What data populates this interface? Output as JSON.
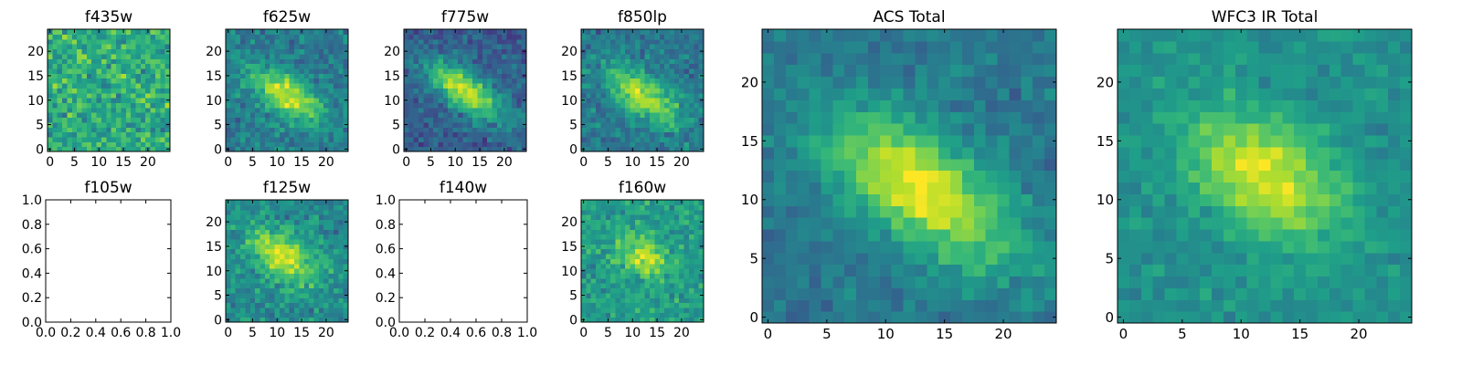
{
  "figure": {
    "colormap": "viridis"
  },
  "chart_data": [
    {
      "type": "heatmap",
      "title": "f435w",
      "xlim": [
        -0.5,
        24.5
      ],
      "ylim": [
        -0.5,
        24.5
      ],
      "xticks": [
        0,
        5,
        10,
        15,
        20
      ],
      "yticks": [
        0,
        5,
        10,
        15,
        20
      ],
      "grid": false,
      "image": {
        "size": [
          25,
          25
        ],
        "vmin": 0,
        "vmax": 1,
        "source": {
          "base": 0.62,
          "peak": 0.0,
          "cx": 12,
          "cy": 12,
          "sx": 6,
          "sy": 3,
          "theta_deg": -35,
          "noise": 0.3,
          "seed": 11
        }
      }
    },
    {
      "type": "heatmap",
      "title": "f625w",
      "xlim": [
        -0.5,
        24.5
      ],
      "ylim": [
        -0.5,
        24.5
      ],
      "xticks": [
        0,
        5,
        10,
        15,
        20
      ],
      "yticks": [
        0,
        5,
        10,
        15,
        20
      ],
      "grid": false,
      "image": {
        "size": [
          25,
          25
        ],
        "vmin": 0,
        "vmax": 1,
        "source": {
          "base": 0.42,
          "peak": 0.5,
          "cx": 12,
          "cy": 11,
          "sx": 6,
          "sy": 2.6,
          "theta_deg": -35,
          "noise": 0.22,
          "seed": 23
        }
      }
    },
    {
      "type": "heatmap",
      "title": "f775w",
      "xlim": [
        -0.5,
        24.5
      ],
      "ylim": [
        -0.5,
        24.5
      ],
      "xticks": [
        0,
        5,
        10,
        15,
        20
      ],
      "yticks": [
        0,
        5,
        10,
        15,
        20
      ],
      "grid": false,
      "image": {
        "size": [
          25,
          25
        ],
        "vmin": 0,
        "vmax": 1,
        "source": {
          "base": 0.3,
          "peak": 0.62,
          "cx": 12,
          "cy": 12,
          "sx": 6.5,
          "sy": 2.6,
          "theta_deg": -35,
          "noise": 0.2,
          "seed": 37
        }
      }
    },
    {
      "type": "heatmap",
      "title": "f850lp",
      "xlim": [
        -0.5,
        24.5
      ],
      "ylim": [
        -0.5,
        24.5
      ],
      "xticks": [
        0,
        5,
        10,
        15,
        20
      ],
      "yticks": [
        0,
        5,
        10,
        15,
        20
      ],
      "grid": false,
      "image": {
        "size": [
          25,
          25
        ],
        "vmin": 0,
        "vmax": 1,
        "source": {
          "base": 0.4,
          "peak": 0.5,
          "cx": 12,
          "cy": 11,
          "sx": 6,
          "sy": 2.8,
          "theta_deg": -35,
          "noise": 0.22,
          "seed": 41
        }
      }
    },
    {
      "type": "heatmap",
      "title": "f105w",
      "xlim": [
        0.0,
        1.0
      ],
      "ylim": [
        0.0,
        1.0
      ],
      "xticks": [
        "0.0",
        "0.2",
        "0.4",
        "0.6",
        "0.8",
        "1.0"
      ],
      "yticks": [
        "0.0",
        "0.2",
        "0.4",
        "0.6",
        "0.8",
        "1.0"
      ],
      "grid": false,
      "image": null
    },
    {
      "type": "heatmap",
      "title": "f125w",
      "xlim": [
        -0.5,
        24.5
      ],
      "ylim": [
        -0.5,
        24.5
      ],
      "xticks": [
        0,
        5,
        10,
        15,
        20
      ],
      "yticks": [
        0,
        5,
        10,
        15,
        20
      ],
      "grid": false,
      "image": {
        "size": [
          25,
          25
        ],
        "vmin": 0,
        "vmax": 1,
        "source": {
          "base": 0.48,
          "peak": 0.45,
          "cx": 11,
          "cy": 13,
          "sx": 5.5,
          "sy": 3,
          "theta_deg": -35,
          "noise": 0.22,
          "seed": 53
        }
      }
    },
    {
      "type": "heatmap",
      "title": "f140w",
      "xlim": [
        0.0,
        1.0
      ],
      "ylim": [
        0.0,
        1.0
      ],
      "xticks": [
        "0.0",
        "0.2",
        "0.4",
        "0.6",
        "0.8",
        "1.0"
      ],
      "yticks": [
        "0.0",
        "0.2",
        "0.4",
        "0.6",
        "0.8",
        "1.0"
      ],
      "grid": false,
      "image": null
    },
    {
      "type": "heatmap",
      "title": "f160w",
      "xlim": [
        -0.5,
        24.5
      ],
      "ylim": [
        -0.5,
        24.5
      ],
      "xticks": [
        0,
        5,
        10,
        15,
        20
      ],
      "yticks": [
        0,
        5,
        10,
        15,
        20
      ],
      "grid": false,
      "image": {
        "size": [
          25,
          25
        ],
        "vmin": 0,
        "vmax": 1,
        "source": {
          "base": 0.55,
          "peak": 0.35,
          "cx": 12,
          "cy": 13,
          "sx": 4,
          "sy": 2.5,
          "theta_deg": -35,
          "noise": 0.22,
          "seed": 67
        }
      }
    },
    {
      "type": "heatmap",
      "title": "ACS Total",
      "xlim": [
        -0.5,
        24.5
      ],
      "ylim": [
        -0.5,
        24.5
      ],
      "xticks": [
        0,
        5,
        10,
        15,
        20
      ],
      "yticks": [
        0,
        5,
        10,
        15,
        20
      ],
      "grid": false,
      "image": {
        "size": [
          25,
          25
        ],
        "vmin": 0,
        "vmax": 1,
        "source": {
          "base": 0.4,
          "peak": 0.58,
          "cx": 13,
          "cy": 11,
          "sx": 6.5,
          "sy": 3,
          "theta_deg": -35,
          "noise": 0.15,
          "seed": 79
        }
      }
    },
    {
      "type": "heatmap",
      "title": "WFC3 IR Total",
      "xlim": [
        -0.5,
        24.5
      ],
      "ylim": [
        -0.5,
        24.5
      ],
      "xticks": [
        0,
        5,
        10,
        15,
        20
      ],
      "yticks": [
        0,
        5,
        10,
        15,
        20
      ],
      "grid": false,
      "image": {
        "size": [
          25,
          25
        ],
        "vmin": 0,
        "vmax": 1,
        "source": {
          "base": 0.5,
          "peak": 0.45,
          "cx": 12,
          "cy": 12,
          "sx": 5,
          "sy": 3.2,
          "theta_deg": -35,
          "noise": 0.13,
          "seed": 97
        }
      }
    }
  ]
}
